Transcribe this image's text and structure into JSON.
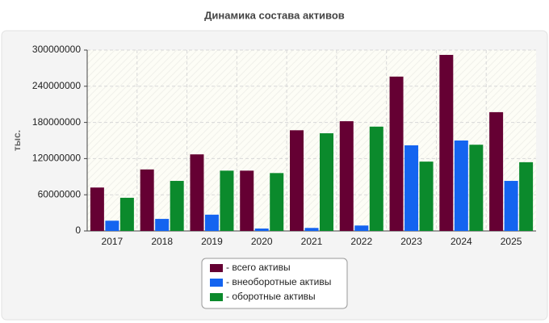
{
  "chart_data": {
    "type": "bar",
    "title": "Динамика состава активов",
    "y_label": "тыс.",
    "categories": [
      "2017",
      "2018",
      "2019",
      "2020",
      "2021",
      "2022",
      "2023",
      "2024",
      "2025"
    ],
    "series": [
      {
        "name": "- всего активы",
        "color": "#650033",
        "values": [
          72000000,
          102000000,
          127000000,
          100000000,
          167000000,
          182000000,
          256000000,
          292000000,
          197000000
        ]
      },
      {
        "name": "- внеоборотные активы",
        "color": "#1464f0",
        "values": [
          17000000,
          20000000,
          27000000,
          4000000,
          5000000,
          9000000,
          142000000,
          150000000,
          83000000
        ]
      },
      {
        "name": "- оборотные активы",
        "color": "#0b8a2c",
        "values": [
          55000000,
          83000000,
          100000000,
          96000000,
          162000000,
          173000000,
          115000000,
          143000000,
          114000000
        ]
      }
    ],
    "ylim": [
      0,
      300000000
    ],
    "yticks": [
      0,
      60000000,
      120000000,
      180000000,
      240000000,
      300000000
    ],
    "grid": true
  }
}
